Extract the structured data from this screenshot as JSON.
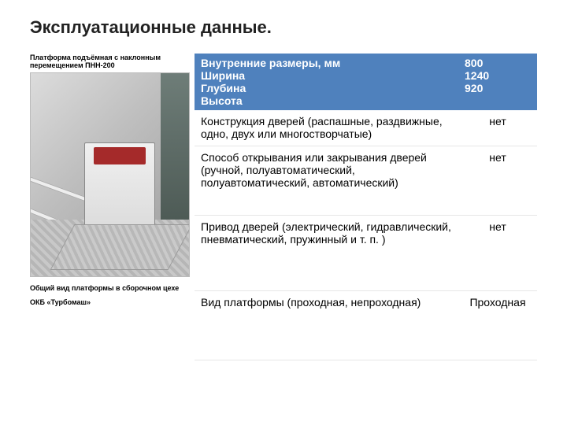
{
  "title": "Эксплуатационные данные.",
  "image": {
    "caption_top": "Платформа подъёмная с наклонным перемещением ПНН-200",
    "caption_bottom": "Общий вид платформы в сборочном цехе ОКБ «Турбомаш»"
  },
  "table": {
    "header": {
      "left_lines": [
        "Внутренние размеры, мм",
        "Ширина",
        "Глубина",
        "Высота"
      ],
      "right_lines": [
        "800",
        "1240",
        "920"
      ]
    },
    "rows": [
      {
        "label": "Конструкция дверей (распашные, раздвижные, одно, двух или многостворчатые)",
        "value": "нет"
      },
      {
        "label": "Способ открывания или закрывания дверей (ручной, полуавтоматический, полуавтоматический, автоматический)",
        "value": "нет"
      },
      {
        "label": "Привод дверей (электрический, гидравлический, пневматический, пружинный и т. п. )",
        "value": "нет"
      },
      {
        "label": "Вид платформы (проходная, непроходная)",
        "value": "Проходная"
      }
    ]
  },
  "colors": {
    "header_bg": "#4f81bd",
    "header_text": "#ffffff",
    "body_text": "#000000",
    "row_border": "#e6e6e6",
    "page_bg": "#ffffff"
  }
}
